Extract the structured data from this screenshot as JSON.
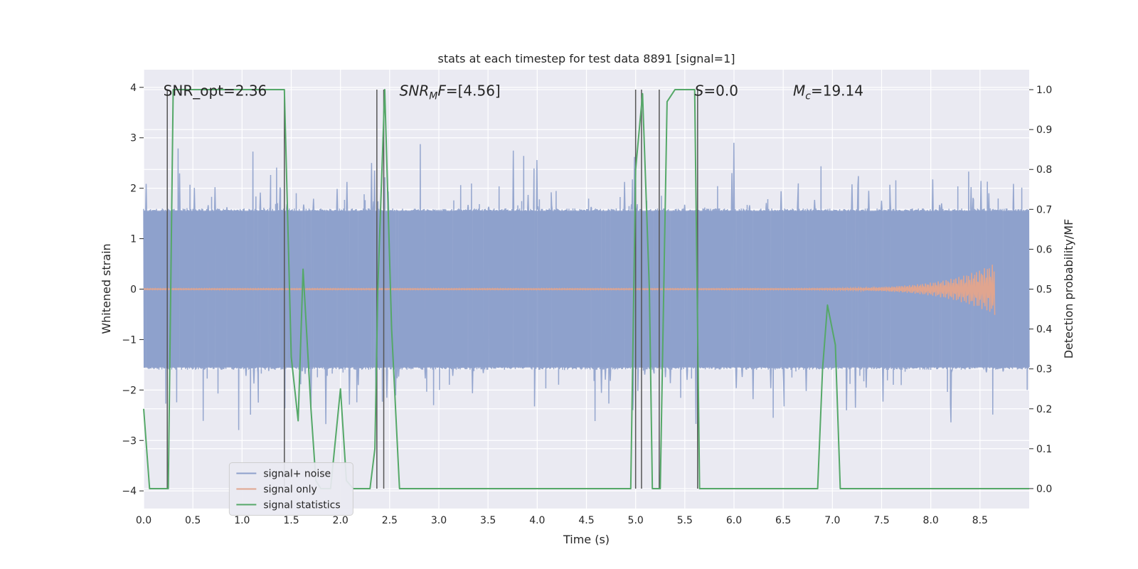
{
  "chart_data": {
    "type": "line",
    "title": "stats at each timestep for test data 8891 [signal=1]",
    "xlabel": "Time (s)",
    "ylabel_left": "Whitened strain",
    "ylabel_right": "Detection probability/MF",
    "xlim": [
      0.0,
      9.0
    ],
    "ylim_left": [
      -4.35,
      4.35
    ],
    "ylim_right": [
      -0.05,
      1.05
    ],
    "x_ticks": [
      0.0,
      0.5,
      1.0,
      1.5,
      2.0,
      2.5,
      3.0,
      3.5,
      4.0,
      4.5,
      5.0,
      5.5,
      6.0,
      6.5,
      7.0,
      7.5,
      8.0,
      8.5
    ],
    "x_tick_labels": [
      "0.0",
      "0.5",
      "1.0",
      "1.5",
      "2.0",
      "2.5",
      "3.0",
      "3.5",
      "4.0",
      "4.5",
      "5.0",
      "5.5",
      "6.0",
      "6.5",
      "7.0",
      "7.5",
      "8.0",
      "8.5"
    ],
    "y_left_ticks": [
      4,
      3,
      2,
      1,
      0,
      -1,
      -2,
      -3,
      -4
    ],
    "y_left_tick_labels": [
      "4",
      "3",
      "2",
      "1",
      "0",
      "−1",
      "−2",
      "−3",
      "−4"
    ],
    "y_right_ticks": [
      1.0,
      0.9,
      0.8,
      0.7,
      0.6,
      0.5,
      0.4,
      0.3,
      0.2,
      0.1,
      0.0
    ],
    "y_right_tick_labels": [
      "1.0",
      "0.9",
      "0.8",
      "0.7",
      "0.6",
      "0.5",
      "0.4",
      "0.3",
      "0.2",
      "0.1",
      "0.0"
    ],
    "grid": true,
    "legend_placement": "lower-left",
    "annotations": [
      {
        "x": 0.2,
        "y_frac": 0.035,
        "parts": [
          {
            "t": "SNR_opt=2.36",
            "i": false
          }
        ]
      },
      {
        "x": 2.6,
        "y_frac": 0.035,
        "parts": [
          {
            "t": "SNR",
            "i": true
          },
          {
            "t": "M",
            "i": true,
            "sub": true
          },
          {
            "t": "F",
            "i": true
          },
          {
            "t": "=[4.56]",
            "i": false
          }
        ]
      },
      {
        "x": 5.6,
        "y_frac": 0.035,
        "parts": [
          {
            "t": "S",
            "i": true
          },
          {
            "t": "=0.0",
            "i": false
          }
        ]
      },
      {
        "x": 6.6,
        "y_frac": 0.035,
        "parts": [
          {
            "t": "M",
            "i": true
          },
          {
            "t": "c",
            "i": true,
            "sub": true
          },
          {
            "t": "=19.14",
            "i": false
          }
        ]
      }
    ],
    "vertical_lines": [
      0.24,
      1.43,
      2.37,
      2.44,
      5.0,
      5.06,
      5.24,
      5.63
    ],
    "series": [
      {
        "name": "signal+ noise",
        "color": "#8da0cb",
        "kind": "noise",
        "duration": 9.0,
        "samples": 1800,
        "core_amplitude": 1.6,
        "max_amplitude": 4.0
      },
      {
        "name": "signal only",
        "color": "#e0a58f",
        "kind": "chirp",
        "start": 5.6,
        "end": 8.65,
        "peak_amplitude": 0.5
      },
      {
        "name": "signal statistics",
        "color": "#55a868",
        "axis": "right",
        "x": [
          0.0,
          0.06,
          0.25,
          0.3,
          0.35,
          1.35,
          1.43,
          1.5,
          1.57,
          1.62,
          1.7,
          1.75,
          1.8,
          1.9,
          2.0,
          2.06,
          2.13,
          2.3,
          2.35,
          2.38,
          2.45,
          2.52,
          2.6,
          4.0,
          4.95,
          5.0,
          5.07,
          5.14,
          5.17,
          5.2,
          5.25,
          5.32,
          5.4,
          5.6,
          5.65,
          5.75,
          6.0,
          6.5,
          6.85,
          6.9,
          6.95,
          7.03,
          7.08,
          7.15,
          7.5,
          8.0,
          8.5,
          9.0
        ],
        "y": [
          0.2,
          0.0,
          0.0,
          1.0,
          1.0,
          1.0,
          1.0,
          0.33,
          0.17,
          0.55,
          0.2,
          0.02,
          0.0,
          0.0,
          0.25,
          0.02,
          0.0,
          0.0,
          0.1,
          0.5,
          1.0,
          0.4,
          0.0,
          0.0,
          0.0,
          0.8,
          0.99,
          0.5,
          0.0,
          0.0,
          0.0,
          0.97,
          1.0,
          1.0,
          0.0,
          0.0,
          0.0,
          0.0,
          0.0,
          0.3,
          0.46,
          0.36,
          0.0,
          0.0,
          0.0,
          0.0,
          0.0,
          0.0
        ]
      }
    ]
  }
}
